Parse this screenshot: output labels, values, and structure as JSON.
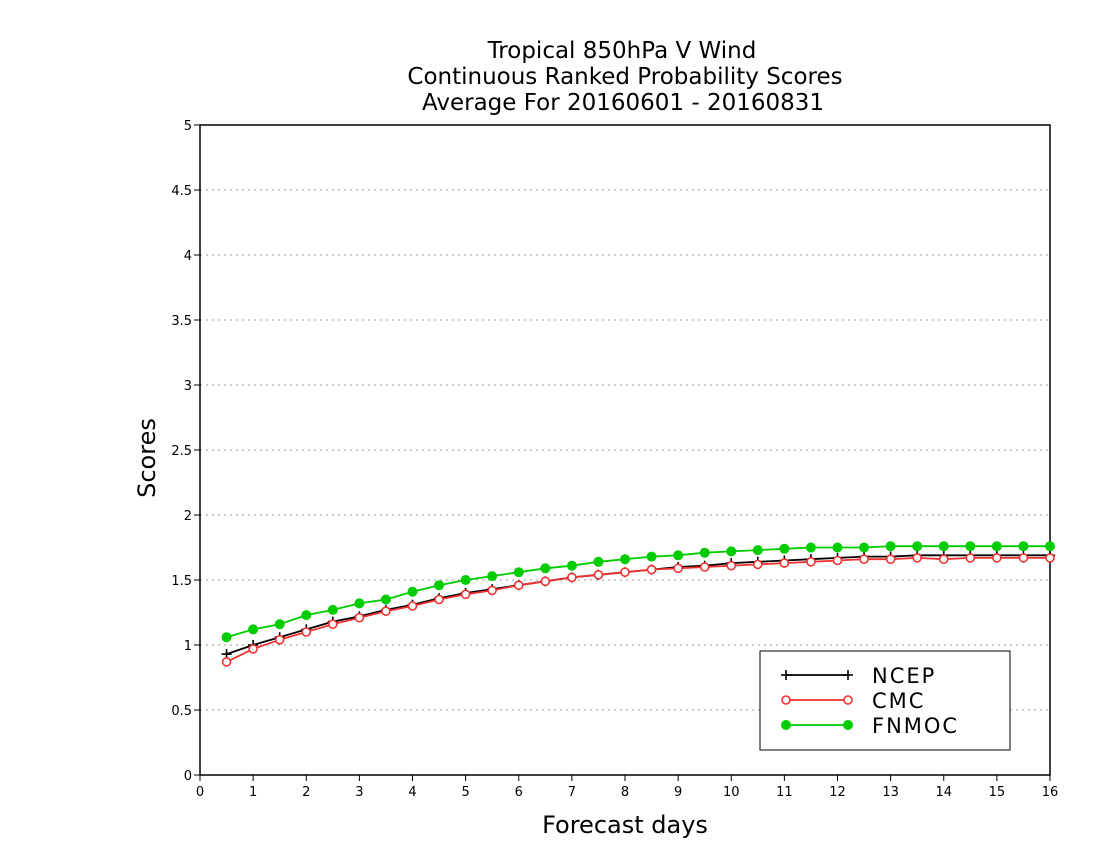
{
  "chart_data": {
    "type": "line",
    "title_lines": [
      "Tropical 850hPa V Wind",
      "Continuous Ranked Probability Scores",
      "Average For 20160601 - 20160831"
    ],
    "xlabel": "Forecast days",
    "ylabel": "Scores",
    "xlim": [
      0,
      16
    ],
    "ylim": [
      0,
      5
    ],
    "xticks": [
      "0",
      "1",
      "2",
      "3",
      "4",
      "5",
      "6",
      "7",
      "8",
      "9",
      "10",
      "11",
      "12",
      "13",
      "14",
      "15",
      "16"
    ],
    "yticks": [
      "0",
      "0.5",
      "1",
      "1.5",
      "2",
      "2.5",
      "3",
      "3.5",
      "4",
      "4.5",
      "5"
    ],
    "grid": "horizontal dotted",
    "legend_position": "bottom-right",
    "x": [
      0.5,
      1,
      1.5,
      2,
      2.5,
      3,
      3.5,
      4,
      4.5,
      5,
      5.5,
      6,
      6.5,
      7,
      7.5,
      8,
      8.5,
      9,
      9.5,
      10,
      10.5,
      11,
      11.5,
      12,
      12.5,
      13,
      13.5,
      14,
      14.5,
      15,
      15.5,
      16
    ],
    "series": [
      {
        "name": "NCEP",
        "color": "#000000",
        "marker": "plus",
        "values": [
          0.93,
          1.0,
          1.06,
          1.12,
          1.18,
          1.22,
          1.27,
          1.31,
          1.36,
          1.4,
          1.43,
          1.46,
          1.49,
          1.52,
          1.54,
          1.56,
          1.58,
          1.6,
          1.61,
          1.63,
          1.64,
          1.65,
          1.66,
          1.67,
          1.68,
          1.68,
          1.69,
          1.69,
          1.69,
          1.69,
          1.69,
          1.69
        ]
      },
      {
        "name": "CMC",
        "color": "#ee3333",
        "marker": "open-circle",
        "values": [
          0.87,
          0.97,
          1.04,
          1.1,
          1.16,
          1.21,
          1.26,
          1.3,
          1.35,
          1.39,
          1.42,
          1.46,
          1.49,
          1.52,
          1.54,
          1.56,
          1.58,
          1.59,
          1.6,
          1.61,
          1.62,
          1.63,
          1.64,
          1.65,
          1.66,
          1.66,
          1.67,
          1.66,
          1.67,
          1.67,
          1.67,
          1.67
        ]
      },
      {
        "name": "FNMOC",
        "color": "#00cc00",
        "marker": "filled-circle",
        "values": [
          1.06,
          1.12,
          1.16,
          1.23,
          1.27,
          1.32,
          1.35,
          1.41,
          1.46,
          1.5,
          1.53,
          1.56,
          1.59,
          1.61,
          1.64,
          1.66,
          1.68,
          1.69,
          1.71,
          1.72,
          1.73,
          1.74,
          1.75,
          1.75,
          1.75,
          1.76,
          1.76,
          1.76,
          1.76,
          1.76,
          1.76,
          1.76
        ]
      }
    ]
  }
}
